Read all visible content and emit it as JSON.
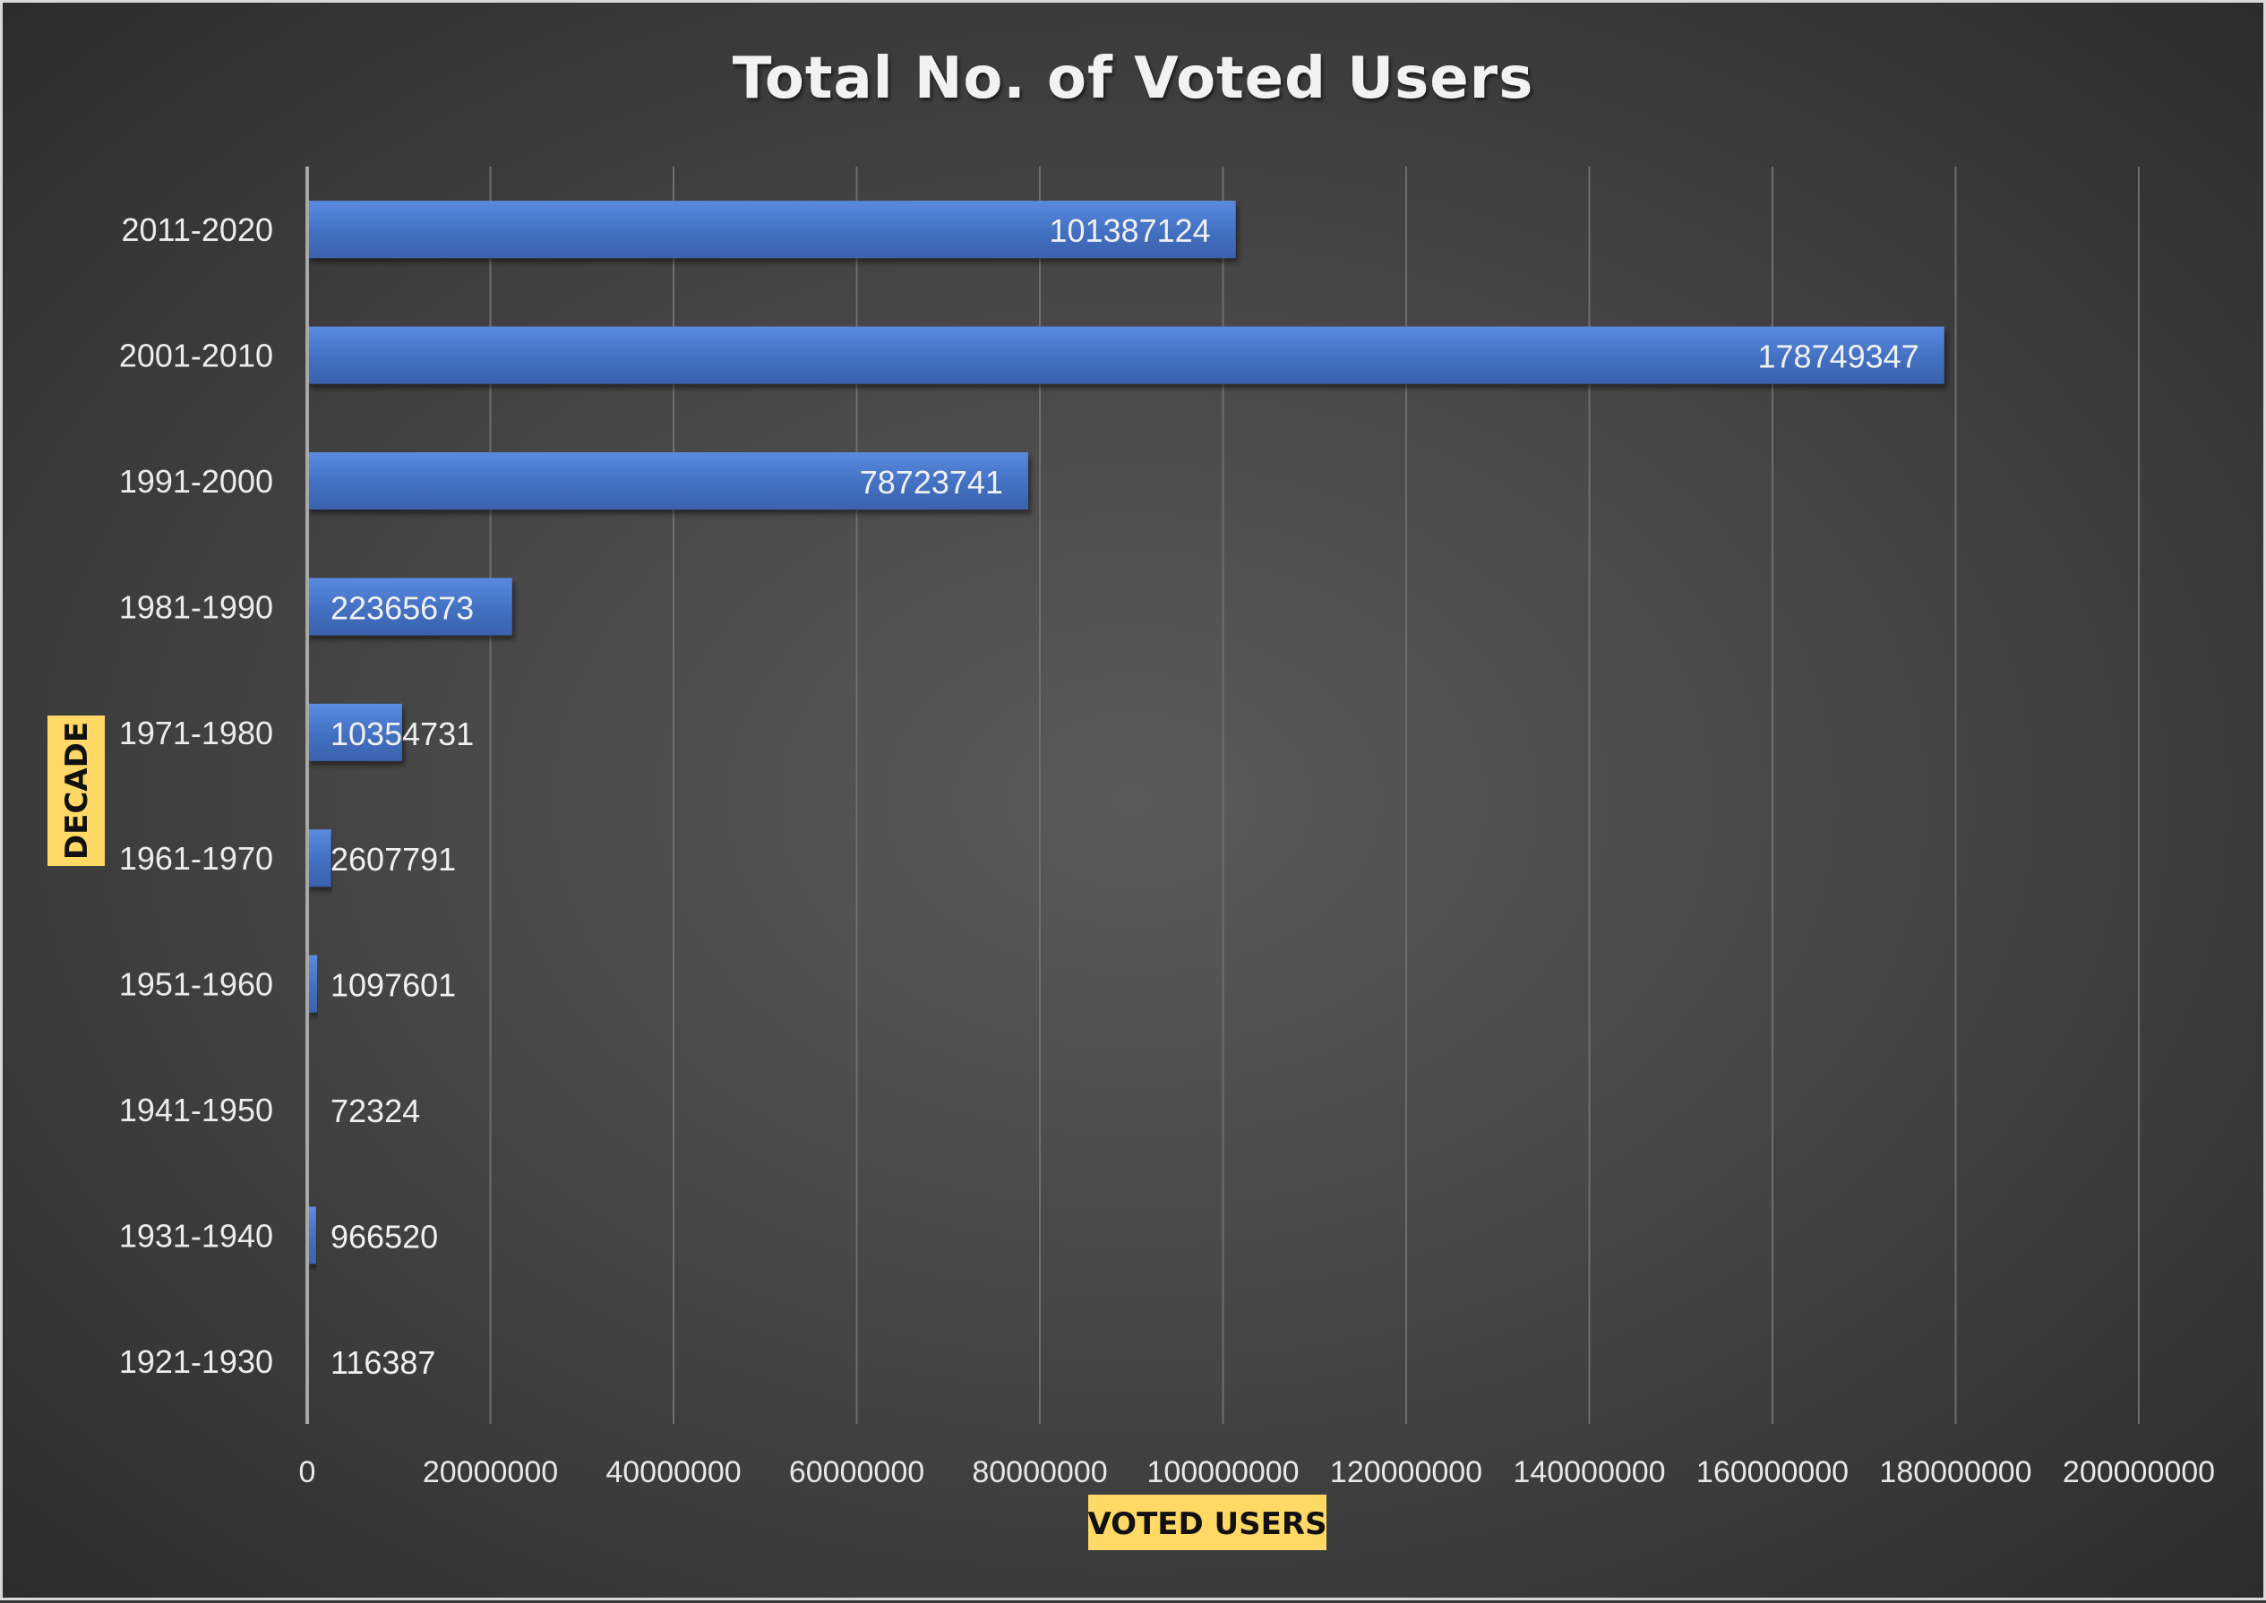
{
  "chart_data": {
    "type": "bar",
    "orientation": "horizontal",
    "title": "Total No. of Voted Users",
    "xlabel": "VOTED USERS",
    "ylabel": "DECADE",
    "categories": [
      "2011-2020",
      "2001-2010",
      "1991-2000",
      "1981-1990",
      "1971-1980",
      "1961-1970",
      "1951-1960",
      "1941-1950",
      "1931-1940",
      "1921-1930"
    ],
    "values": [
      101387124,
      178749347,
      78723741,
      22365673,
      10354731,
      2607791,
      1097601,
      72324,
      966520,
      116387
    ],
    "data_labels": [
      "101387124",
      "178749347",
      "78723741",
      "22365673",
      "10354731",
      "2607791",
      "1097601",
      "72324",
      "966520",
      "116387"
    ],
    "xlim": [
      0,
      200000000
    ],
    "x_ticks": [
      0,
      20000000,
      40000000,
      60000000,
      80000000,
      100000000,
      120000000,
      140000000,
      160000000,
      180000000,
      200000000
    ],
    "x_tick_labels": [
      "0",
      "20000000",
      "40000000",
      "60000000",
      "80000000",
      "100000000",
      "120000000",
      "140000000",
      "160000000",
      "180000000",
      "200000000"
    ],
    "grid": "vertical",
    "legend": "none",
    "colors": {
      "bar": "#4472c4",
      "bar_light": "#5b8ae0",
      "axis_title_bg": "#ffd966",
      "background": "#4a4a4a"
    }
  }
}
